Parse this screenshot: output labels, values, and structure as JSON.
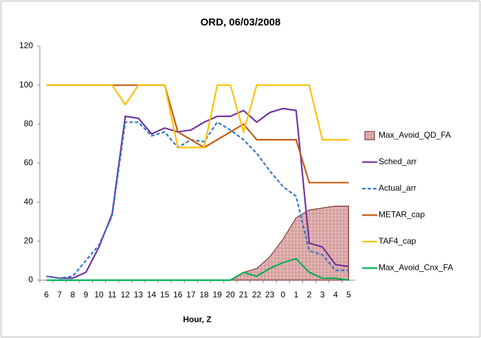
{
  "chart_data": {
    "type": "line",
    "title": "ORD, 06/03/2008",
    "x_label": "Hour, Z",
    "categories": [
      "6",
      "7",
      "8",
      "9",
      "10",
      "11",
      "12",
      "13",
      "14",
      "15",
      "16",
      "17",
      "18",
      "19",
      "20",
      "21",
      "22",
      "23",
      "0",
      "1",
      "2",
      "3",
      "4",
      "5"
    ],
    "ylim": [
      0,
      120
    ],
    "yticks": [
      0,
      20,
      40,
      60,
      80,
      100,
      120
    ],
    "grid": false,
    "legend": "right",
    "series": [
      {
        "name": "Max_Avoid_QD_FA",
        "kind": "area",
        "color": "#e2b4b4",
        "values": [
          0,
          0,
          0,
          0,
          0,
          0,
          0,
          0,
          0,
          0,
          0,
          0,
          0,
          0,
          0,
          4,
          6,
          12,
          21,
          32,
          36,
          37,
          38,
          38
        ]
      },
      {
        "name": "Sched_arr",
        "color": "#7030a0",
        "values": [
          2,
          1,
          1,
          4,
          17,
          34,
          84,
          83,
          75,
          78,
          76,
          77,
          81,
          84,
          84,
          87,
          81,
          86,
          88,
          87,
          19,
          17,
          8,
          7
        ]
      },
      {
        "name": "Actual_arr",
        "color": "#2e75c6",
        "dashed": true,
        "values": [
          2,
          1,
          2,
          10,
          18,
          33,
          81,
          81,
          74,
          76,
          68,
          72,
          71,
          81,
          77,
          72,
          65,
          56,
          48,
          43,
          15,
          13,
          5,
          5
        ]
      },
      {
        "name": "METAR_cap",
        "color": "#c55a11",
        "values": [
          100,
          100,
          100,
          100,
          100,
          100,
          100,
          100,
          100,
          100,
          76,
          72,
          68,
          72,
          76,
          80,
          72,
          72,
          72,
          72,
          50,
          50,
          50,
          50
        ]
      },
      {
        "name": "TAF4_cap",
        "color": "#ffc000",
        "values": [
          100,
          100,
          100,
          100,
          100,
          100,
          90,
          100,
          100,
          100,
          68,
          68,
          68,
          100,
          100,
          76,
          100,
          100,
          100,
          100,
          100,
          72,
          72,
          72
        ]
      },
      {
        "name": "Max_Avoid_Cnx_FA",
        "color": "#00b050",
        "values": [
          0,
          0,
          0,
          0,
          0,
          0,
          0,
          0,
          0,
          0,
          0,
          0,
          0,
          0,
          0,
          4,
          2,
          6,
          9,
          11,
          4,
          1,
          1,
          0
        ]
      }
    ]
  }
}
